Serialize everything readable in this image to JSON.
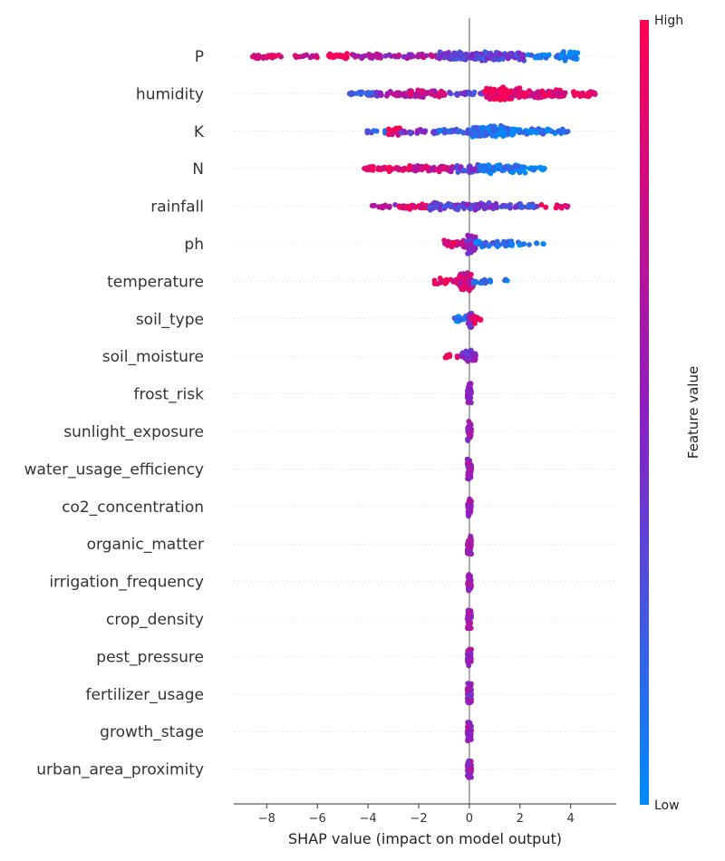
{
  "chart_data": {
    "type": "scatter",
    "subtype": "shap-beeswarm",
    "xlabel": "SHAP value (impact on model output)",
    "xticks": [
      -8,
      -6,
      -4,
      -2,
      0,
      2,
      4
    ],
    "xtick_labels": [
      "−8",
      "−6",
      "−4",
      "−2",
      "0",
      "2",
      "4"
    ],
    "xlim": [
      -9.3,
      5.8
    ],
    "colorbar": {
      "label": "Feature value",
      "high_label": "High",
      "low_label": "Low",
      "low_color": "#008bfb",
      "high_color": "#ff0052",
      "mid_color": "#8c1fc2"
    },
    "features": [
      {
        "name": "P",
        "bands": [
          {
            "min": -8.7,
            "max": -7.4,
            "n": 24,
            "c": 0.85
          },
          {
            "min": -7.0,
            "max": -5.6,
            "n": 14,
            "c": 0.75
          },
          {
            "min": -5.6,
            "max": -4.6,
            "n": 20,
            "c": 0.95
          },
          {
            "min": -4.6,
            "max": -1.2,
            "n": 55,
            "c": 0.6
          },
          {
            "min": -1.2,
            "max": 2.2,
            "n": 150,
            "c": 0.35
          },
          {
            "min": 2.2,
            "max": 3.6,
            "n": 20,
            "c": 0.1
          },
          {
            "min": 3.6,
            "max": 4.3,
            "n": 30,
            "c": 0.02
          }
        ]
      },
      {
        "name": "humidity",
        "bands": [
          {
            "min": -4.8,
            "max": -3.6,
            "n": 28,
            "c": 0.3
          },
          {
            "min": -3.6,
            "max": -2.6,
            "n": 22,
            "c": 0.6
          },
          {
            "min": -2.6,
            "max": -0.9,
            "n": 60,
            "c": 0.75
          },
          {
            "min": -0.9,
            "max": 0.6,
            "n": 25,
            "c": 0.35
          },
          {
            "min": 0.6,
            "max": 2.0,
            "n": 95,
            "c": 0.92
          },
          {
            "min": 2.0,
            "max": 3.6,
            "n": 65,
            "c": 0.85
          },
          {
            "min": 3.6,
            "max": 5.0,
            "n": 35,
            "c": 0.88
          }
        ]
      },
      {
        "name": "K",
        "bands": [
          {
            "min": -4.1,
            "max": -3.2,
            "n": 10,
            "c": 0.2
          },
          {
            "min": -3.2,
            "max": -2.7,
            "n": 22,
            "c": 0.95
          },
          {
            "min": -2.7,
            "max": -1.2,
            "n": 25,
            "c": 0.4
          },
          {
            "min": -1.2,
            "max": 0.0,
            "n": 28,
            "c": 0.2
          },
          {
            "min": 0.0,
            "max": 1.8,
            "n": 110,
            "c": 0.1
          },
          {
            "min": 1.8,
            "max": 3.9,
            "n": 50,
            "c": 0.08
          }
        ]
      },
      {
        "name": "N",
        "bands": [
          {
            "min": -4.2,
            "max": -2.2,
            "n": 50,
            "c": 0.9
          },
          {
            "min": -2.2,
            "max": -0.6,
            "n": 45,
            "c": 0.75
          },
          {
            "min": -0.6,
            "max": 0.4,
            "n": 35,
            "c": 0.35
          },
          {
            "min": 0.4,
            "max": 2.2,
            "n": 90,
            "c": 0.08
          },
          {
            "min": 2.2,
            "max": 3.0,
            "n": 15,
            "c": 0.05
          }
        ]
      },
      {
        "name": "rainfall",
        "bands": [
          {
            "min": -3.9,
            "max": -2.8,
            "n": 14,
            "c": 0.6
          },
          {
            "min": -2.8,
            "max": -1.6,
            "n": 28,
            "c": 0.92
          },
          {
            "min": -1.6,
            "max": -0.6,
            "n": 40,
            "c": 0.35
          },
          {
            "min": -0.6,
            "max": 1.0,
            "n": 60,
            "c": 0.4
          },
          {
            "min": 1.0,
            "max": 2.8,
            "n": 40,
            "c": 0.3
          },
          {
            "min": 2.8,
            "max": 4.1,
            "n": 12,
            "c": 0.85
          }
        ]
      },
      {
        "name": "ph",
        "bands": [
          {
            "min": -1.0,
            "max": -0.1,
            "n": 30,
            "c": 0.85
          },
          {
            "min": -0.1,
            "max": 0.25,
            "n": 60,
            "c": 0.5
          },
          {
            "min": 0.25,
            "max": 1.8,
            "n": 40,
            "c": 0.1
          },
          {
            "min": 1.8,
            "max": 3.0,
            "n": 10,
            "c": 0.05
          }
        ]
      },
      {
        "name": "temperature",
        "bands": [
          {
            "min": -1.4,
            "max": -0.4,
            "n": 25,
            "c": 0.95
          },
          {
            "min": -0.4,
            "max": 0.15,
            "n": 60,
            "c": 0.75
          },
          {
            "min": 0.15,
            "max": 1.0,
            "n": 18,
            "c": 0.15
          },
          {
            "min": 1.3,
            "max": 1.5,
            "n": 3,
            "c": 0.1
          }
        ]
      },
      {
        "name": "soil_type",
        "bands": [
          {
            "min": -0.6,
            "max": -0.05,
            "n": 16,
            "c": 0.08
          },
          {
            "min": -0.05,
            "max": 0.1,
            "n": 30,
            "c": 0.5
          },
          {
            "min": 0.1,
            "max": 0.45,
            "n": 14,
            "c": 0.95
          }
        ]
      },
      {
        "name": "soil_moisture",
        "bands": [
          {
            "min": -1.0,
            "max": -0.3,
            "n": 8,
            "c": 0.95
          },
          {
            "min": -0.3,
            "max": 0.3,
            "n": 40,
            "c": 0.5
          }
        ]
      },
      {
        "name": "frost_risk",
        "bands": [
          {
            "min": -0.08,
            "max": 0.08,
            "n": 45,
            "c": 0.55
          }
        ]
      },
      {
        "name": "sunlight_exposure",
        "bands": [
          {
            "min": -0.08,
            "max": 0.08,
            "n": 45,
            "c": 0.55
          }
        ]
      },
      {
        "name": "water_usage_efficiency",
        "bands": [
          {
            "min": -0.08,
            "max": 0.08,
            "n": 45,
            "c": 0.55
          }
        ]
      },
      {
        "name": "co2_concentration",
        "bands": [
          {
            "min": -0.08,
            "max": 0.08,
            "n": 45,
            "c": 0.55
          }
        ]
      },
      {
        "name": "organic_matter",
        "bands": [
          {
            "min": -0.08,
            "max": 0.08,
            "n": 45,
            "c": 0.55
          }
        ]
      },
      {
        "name": "irrigation_frequency",
        "bands": [
          {
            "min": -0.08,
            "max": 0.08,
            "n": 45,
            "c": 0.55
          }
        ]
      },
      {
        "name": "crop_density",
        "bands": [
          {
            "min": -0.08,
            "max": 0.08,
            "n": 45,
            "c": 0.55
          }
        ]
      },
      {
        "name": "pest_pressure",
        "bands": [
          {
            "min": -0.08,
            "max": 0.08,
            "n": 45,
            "c": 0.55
          }
        ]
      },
      {
        "name": "fertilizer_usage",
        "bands": [
          {
            "min": -0.08,
            "max": 0.08,
            "n": 45,
            "c": 0.55
          }
        ]
      },
      {
        "name": "growth_stage",
        "bands": [
          {
            "min": -0.08,
            "max": 0.08,
            "n": 45,
            "c": 0.55
          }
        ]
      },
      {
        "name": "urban_area_proximity",
        "bands": [
          {
            "min": -0.08,
            "max": 0.08,
            "n": 45,
            "c": 0.55
          }
        ]
      }
    ]
  }
}
